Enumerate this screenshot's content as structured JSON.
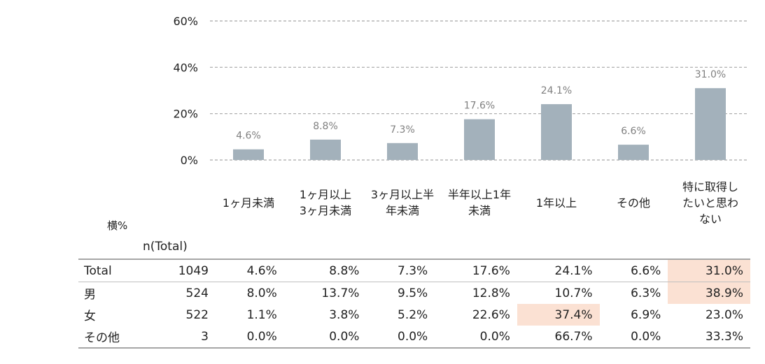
{
  "chart_data": {
    "type": "bar",
    "categories": [
      [
        "1ヶ月未満"
      ],
      [
        "1ヶ月以上",
        "3ヶ月未満"
      ],
      [
        "3ヶ月以上半",
        "年未満"
      ],
      [
        "半年以上1年",
        "未満"
      ],
      [
        "1年以上"
      ],
      [
        "その他"
      ],
      [
        "特に取得し",
        "たいと思わ",
        "ない"
      ]
    ],
    "values": [
      4.6,
      8.8,
      7.3,
      17.6,
      24.1,
      6.6,
      31.0
    ],
    "data_labels": [
      "4.6%",
      "8.8%",
      "7.3%",
      "17.6%",
      "24.1%",
      "6.6%",
      "31.0%"
    ],
    "yticks": [
      "0%",
      "20%",
      "40%",
      "60%"
    ],
    "ylim": [
      0,
      60
    ],
    "grid": true,
    "bar_color": "#a3b1bb",
    "label_color": "#808080"
  },
  "table": {
    "corner_label": "横%",
    "n_header": "n(Total)",
    "highlight_color": "#fbe1d3",
    "rows": [
      {
        "name": "Total",
        "n": "1049",
        "cells": [
          "4.6%",
          "8.8%",
          "7.3%",
          "17.6%",
          "24.1%",
          "6.6%",
          "31.0%"
        ],
        "highlight": [
          6
        ]
      },
      {
        "name": "男",
        "n": "524",
        "cells": [
          "8.0%",
          "13.7%",
          "9.5%",
          "12.8%",
          "10.7%",
          "6.3%",
          "38.9%"
        ],
        "highlight": [
          6
        ]
      },
      {
        "name": "女",
        "n": "522",
        "cells": [
          "1.1%",
          "3.8%",
          "5.2%",
          "22.6%",
          "37.4%",
          "6.9%",
          "23.0%"
        ],
        "highlight": [
          4
        ]
      },
      {
        "name": "その他",
        "n": "3",
        "cells": [
          "0.0%",
          "0.0%",
          "0.0%",
          "0.0%",
          "66.7%",
          "0.0%",
          "33.3%"
        ],
        "highlight": []
      }
    ]
  }
}
